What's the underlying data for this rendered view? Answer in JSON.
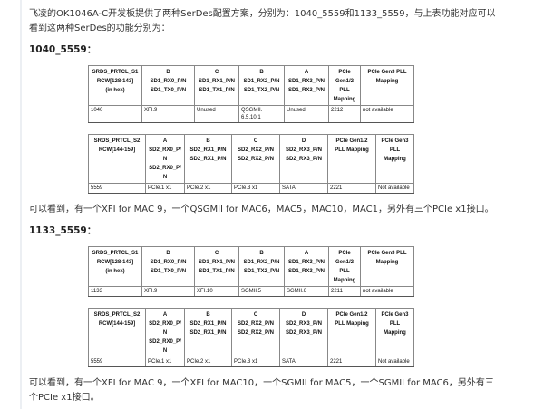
{
  "intro": [
    "飞凌的OK1046A-C开发板提供了两种SerDes配置方案，分别为：1040_5559和1133_5559，与上表功能对应可以",
    "看到这两种SerDes的功能分别为："
  ],
  "section1": {
    "heading": "1040_5559：",
    "table_s1": {
      "header": [
        [
          "SRDS_PRTCL_S1",
          "RCW[128-143]",
          "(in hex)"
        ],
        [
          "D",
          "SD1_RX0_P/N",
          "SD1_TX0_P/N"
        ],
        [
          "C",
          "SD1_RX1_P/N",
          "SD1_TX1_P/N"
        ],
        [
          "B",
          "SD1_RX2_P/N",
          "SD1_TX2_P/N"
        ],
        [
          "A",
          "SD1_RX3_P/N",
          "SD1_RX3_P/N"
        ],
        [
          "PCIe",
          "Gen1/2",
          "PLL",
          "Mapping"
        ],
        [
          "PCIe Gen3 PLL",
          "Mapping"
        ]
      ],
      "row": [
        "1040",
        "XFI.9",
        "Unused",
        "QSGMII.\n6,5,10,1",
        "Unused",
        "2212",
        "not available"
      ]
    },
    "table_s2": {
      "header": [
        [
          "SRDS_PRTCL_S2",
          "RCW[144-159]"
        ],
        [
          "A",
          "SD2_RX0_P/",
          "N",
          "SD2_RX0_P/",
          "N"
        ],
        [
          "B",
          "SD2_RX1_P/N",
          "SD2_RX1_P/N"
        ],
        [
          "C",
          "SD2_RX2_P/N",
          "SD2_RX2_P/N"
        ],
        [
          "D",
          "SD2_RX3_P/N",
          "SD2_RX3_P/N"
        ],
        [
          "PCIe Gen1/2",
          "PLL Mapping"
        ],
        [
          "PCIe Gen3",
          "PLL",
          "Mapping"
        ]
      ],
      "row": [
        "5559",
        "PCIe.1 x1",
        "PCIe.2 x1",
        "PCIe.3 x1",
        "SATA",
        "2221",
        "Not available"
      ]
    },
    "summary": "可以看到，有一个XFI for MAC 9，一个QSGMII for MAC6，MAC5，MAC10，MAC1，另外有三个PCIe x1接口。"
  },
  "section2": {
    "heading": "1133_5559：",
    "table_s1": {
      "header": [
        [
          "SRDS_PRTCL_S1",
          "RCW[128-143]",
          "(in hex)"
        ],
        [
          "D",
          "SD1_RX0_P/N",
          "SD1_TX0_P/N"
        ],
        [
          "C",
          "SD1_RX1_P/N",
          "SD1_TX1_P/N"
        ],
        [
          "B",
          "SD1_RX2_P/N",
          "SD1_TX2_P/N"
        ],
        [
          "A",
          "SD1_RX3_P/N",
          "SD1_RX3_P/N"
        ],
        [
          "PCIe",
          "Gen1/2",
          "PLL",
          "Mapping"
        ],
        [
          "PCIe Gen3 PLL",
          "Mapping"
        ]
      ],
      "row": [
        "1133",
        "XFI.9",
        "XFI.10",
        "SGMII.5",
        "SGMII.6",
        "2211",
        "not available"
      ]
    },
    "table_s2": {
      "header": [
        [
          "SRDS_PRTCL_S2",
          "RCW[144-159]"
        ],
        [
          "A",
          "SD2_RX0_P/",
          "N",
          "SD2_RX0_P/",
          "N"
        ],
        [
          "B",
          "SD2_RX1_P/N",
          "SD2_RX1_P/N"
        ],
        [
          "C",
          "SD2_RX2_P/N",
          "SD2_RX2_P/N"
        ],
        [
          "D",
          "SD2_RX3_P/N",
          "SD2_RX3_P/N"
        ],
        [
          "PCIe Gen1/2",
          "PLL Mapping"
        ],
        [
          "PCIe Gen3",
          "PLL",
          "Mapping"
        ]
      ],
      "row": [
        "5559",
        "PCIe.1 x1",
        "PCIe.2 x1",
        "PCIe.3 x1",
        "SATA",
        "2221",
        "Not available"
      ]
    },
    "summary": [
      "可以看到，有一个XFI for MAC 9，一个XFI for MAC10，一个SGMII for MAC5，一个SGMII for MAC6，另外有三",
      "个PCIe x1接口。"
    ]
  }
}
